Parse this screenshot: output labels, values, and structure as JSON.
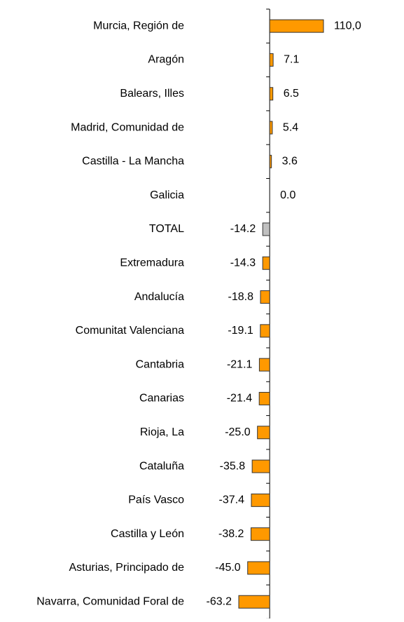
{
  "chart_data": {
    "type": "hbar",
    "categories": [
      "Murcia, Región de",
      "Aragón",
      "Balears, Illes",
      "Madrid, Comunidad de",
      "Castilla - La Mancha",
      "Galicia",
      "TOTAL",
      "Extremadura",
      "Andalucía",
      "Comunitat Valenciana",
      "Cantabria",
      "Canarias",
      "Rioja, La",
      "Cataluña",
      "País Vasco",
      "Castilla y León",
      "Asturias, Principado de",
      "Navarra, Comunidad Foral de"
    ],
    "values": [
      110,
      7.1,
      6.5,
      5.4,
      3.6,
      0,
      -14.2,
      -14.3,
      -18.8,
      -19.1,
      -21.1,
      -21.4,
      -25,
      -35.8,
      -37.4,
      -38.2,
      -45,
      -63.2
    ],
    "value_labels": [
      "110,0",
      "7.1",
      "6.5",
      "5.4",
      "3.6",
      "0.0",
      "-14.2",
      "-14.3",
      "-18.8",
      "-19.1",
      "-21.1",
      "-21.4",
      "-25.0",
      "-35.8",
      "-37.4",
      "-38.2",
      "-45.0",
      "-63.2"
    ],
    "colors": [
      "#ff9900",
      "#ff9900",
      "#ff9900",
      "#ff9900",
      "#ff9900",
      "#ff9900",
      "#c0c0c0",
      "#ff9900",
      "#ff9900",
      "#ff9900",
      "#ff9900",
      "#ff9900",
      "#ff9900",
      "#ff9900",
      "#ff9900",
      "#ff9900",
      "#ff9900",
      "#ff9900"
    ]
  }
}
